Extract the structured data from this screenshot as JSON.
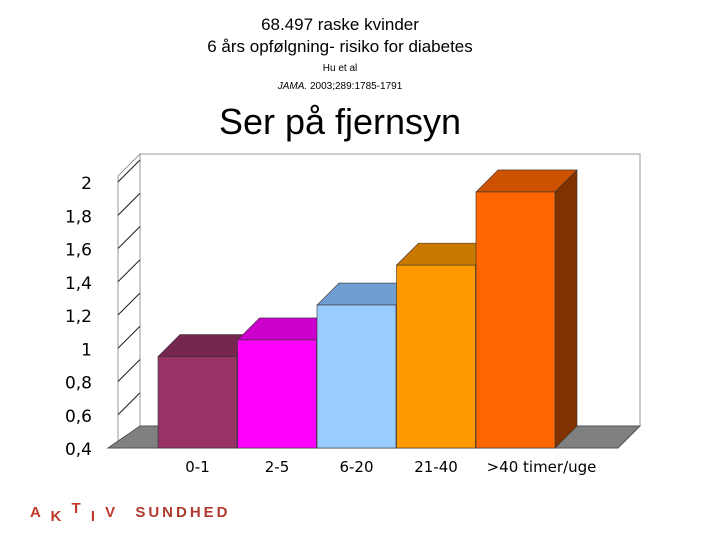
{
  "header": {
    "line1": "68.497 raske kvinder",
    "line2": "6 års opfølgning- risiko for diabetes",
    "author": "Hu et al",
    "journal": "JAMA.",
    "reference": "2003;289:1785-1791",
    "subject": "Ser på fjernsyn"
  },
  "chart_data": {
    "type": "bar",
    "categories": [
      "0-1",
      "2-5",
      "6-20",
      "21-40",
      ">40 timer/uge"
    ],
    "values": [
      0.95,
      1.05,
      1.26,
      1.5,
      1.94
    ],
    "yticks": [
      "0,4",
      "0,6",
      "0,8",
      "1",
      "1,2",
      "1,4",
      "1,6",
      "1,8",
      "2"
    ],
    "ylim": [
      0.4,
      2.0
    ],
    "grid": true,
    "colors": [
      "#993366",
      "#ff00ff",
      "#99ccff",
      "#ff9900",
      "#ff6600"
    ],
    "top_colors": [
      "#77264f",
      "#cc00cc",
      "#6f9fd0",
      "#c97800",
      "#cc5200"
    ],
    "side_colors": [
      "#6b2347",
      "#b300b3",
      "#6a8fb5",
      "#b36b00",
      "#803300"
    ]
  },
  "brand": {
    "a": "A",
    "k": "K",
    "t": "T",
    "i": "I",
    "v": "V",
    "name": "SUNDHED"
  }
}
